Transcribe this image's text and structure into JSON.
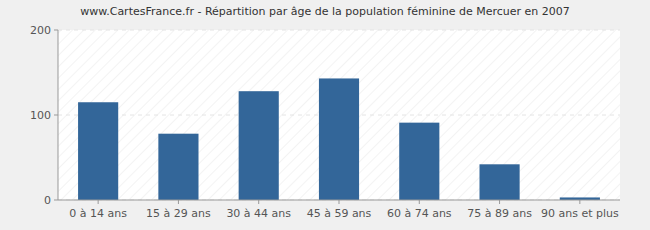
{
  "chart_data": {
    "type": "bar",
    "title": "www.CartesFrance.fr - Répartition par âge de la population féminine de Mercuer en 2007",
    "categories": [
      "0 à 14 ans",
      "15 à 29 ans",
      "30 à 44 ans",
      "45 à 59 ans",
      "60 à 74 ans",
      "75 à 89 ans",
      "90 ans et plus"
    ],
    "values": [
      115,
      78,
      128,
      143,
      91,
      42,
      3
    ],
    "color": "#336699",
    "ylim": [
      0,
      200
    ],
    "yticks": [
      0,
      100,
      200
    ],
    "grid": true
  }
}
